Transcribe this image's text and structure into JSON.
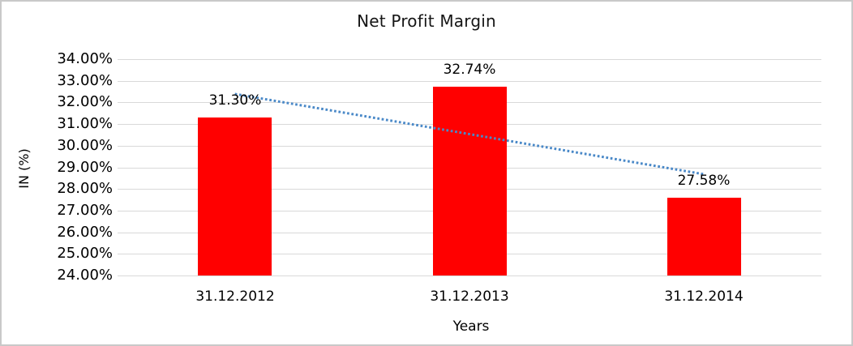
{
  "chart_data": {
    "type": "bar",
    "title": "Net Profit Margin",
    "xlabel": "Years",
    "ylabel": "IN (%)",
    "categories": [
      "31.12.2012",
      "31.12.2013",
      "31.12.2014"
    ],
    "values": [
      31.3,
      32.74,
      27.58
    ],
    "data_labels": [
      "31.30%",
      "32.74%",
      "27.58%"
    ],
    "ylim": [
      24,
      34
    ],
    "ytick_step": 1,
    "ytick_labels": [
      "24.00%",
      "25.00%",
      "26.00%",
      "27.00%",
      "28.00%",
      "29.00%",
      "30.00%",
      "31.00%",
      "32.00%",
      "33.00%",
      "34.00%"
    ],
    "grid": true,
    "legend": false,
    "bar_color": "#ff0000",
    "gridline_color": "#d9d9d9",
    "trendline": {
      "type": "linear",
      "style": "dotted",
      "color": "#4a89c8",
      "start_value": 32.39,
      "end_value": 28.68
    }
  }
}
